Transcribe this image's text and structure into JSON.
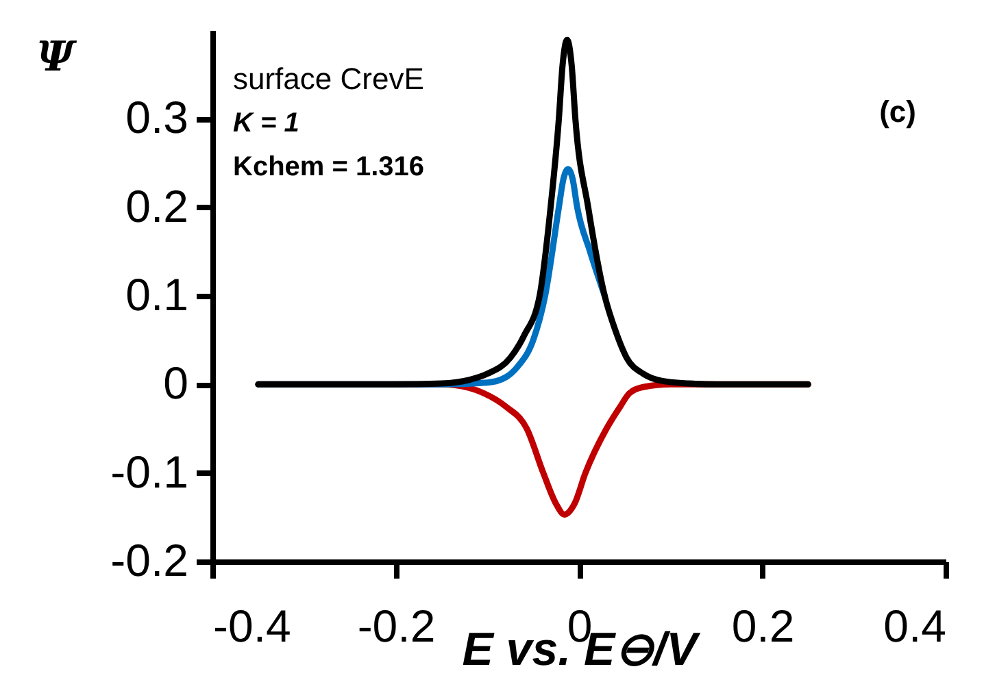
{
  "chart_data": {
    "type": "line",
    "xlabel": "E vs. E⊖/V",
    "ylabel": "Ψ",
    "xlim": [
      -0.4,
      0.4
    ],
    "xticks": [
      -0.4,
      -0.2,
      0,
      0.2,
      0.4
    ],
    "ylim": [
      -0.2,
      0.4
    ],
    "yticks": [
      -0.2,
      -0.1,
      0,
      0.1,
      0.2,
      0.3
    ],
    "grid": false,
    "annotations": [
      "surface CrevE",
      "K = 1",
      "Kchem = 1.316",
      "(c)"
    ],
    "series": [
      {
        "color": "#c00000",
        "x": [
          -0.35,
          -0.15,
          -0.12,
          -0.104,
          -0.08,
          -0.057,
          -0.039,
          -0.025,
          -0.016,
          -0.005,
          0.007,
          0.03,
          0.045,
          0.055,
          0.07,
          0.1,
          0.25
        ],
        "values": [
          0,
          0,
          -0.004,
          -0.01,
          -0.025,
          -0.05,
          -0.1,
          -0.135,
          -0.147,
          -0.135,
          -0.1,
          -0.05,
          -0.025,
          -0.01,
          -0.003,
          0,
          0
        ]
      },
      {
        "color": "#0070c0",
        "x": [
          -0.35,
          -0.15,
          -0.1,
          -0.08,
          -0.067,
          -0.05,
          -0.037,
          -0.022,
          -0.017,
          -0.012,
          -0.007,
          -0.002,
          0.012,
          0.028
        ],
        "values": [
          0,
          0,
          0.002,
          0.008,
          0.02,
          0.05,
          0.1,
          0.2,
          0.232,
          0.243,
          0.232,
          0.2,
          0.15,
          0.1
        ]
      },
      {
        "color": "#000000",
        "x": [
          -0.35,
          -0.2,
          -0.15,
          -0.12,
          -0.1,
          -0.075,
          -0.06,
          -0.043,
          -0.031,
          -0.022,
          -0.018,
          -0.013,
          -0.008,
          -0.004,
          0.01,
          0.028,
          0.04,
          0.052,
          0.07,
          0.09,
          0.12,
          0.15,
          0.25
        ],
        "values": [
          0,
          0,
          0.001,
          0.005,
          0.012,
          0.03,
          0.055,
          0.1,
          0.2,
          0.3,
          0.36,
          0.389,
          0.36,
          0.3,
          0.2,
          0.1,
          0.06,
          0.03,
          0.012,
          0.004,
          0.001,
          0,
          0
        ]
      }
    ]
  }
}
